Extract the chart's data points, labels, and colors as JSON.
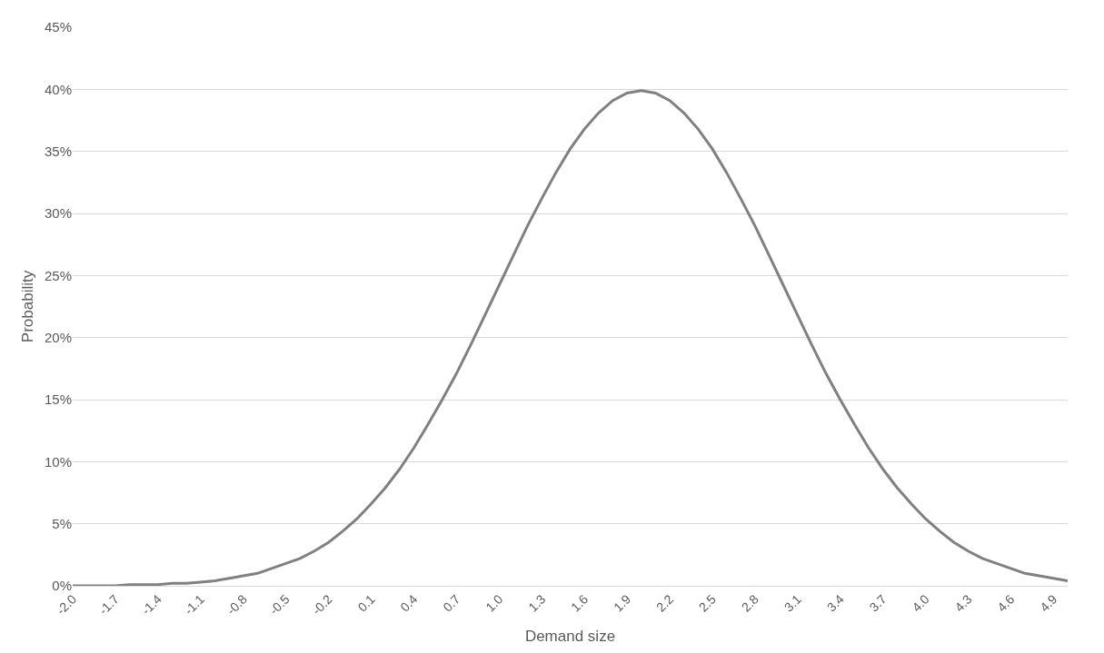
{
  "chart_data": {
    "type": "line",
    "xlabel": "Demand size",
    "ylabel": "Probability",
    "categories": [
      "-2.0",
      null,
      null,
      "-1.7",
      null,
      null,
      "-1.4",
      null,
      null,
      "-1.1",
      null,
      null,
      "-0.8",
      null,
      null,
      "-0.5",
      null,
      null,
      "-0.2",
      null,
      null,
      "0.1",
      null,
      null,
      "0.4",
      null,
      null,
      "0.7",
      null,
      null,
      "1.0",
      null,
      null,
      "1.3",
      null,
      null,
      "1.6",
      null,
      null,
      "1.9",
      null,
      null,
      "2.2",
      null,
      null,
      "2.5",
      null,
      null,
      "2.8",
      null,
      null,
      "3.1",
      null,
      null,
      "3.4",
      null,
      null,
      "3.7",
      null,
      null,
      "4.0",
      null,
      null,
      "4.3",
      null,
      null,
      "4.6",
      null,
      null,
      "4.9",
      null
    ],
    "series": [
      {
        "color": "#808080",
        "values": [
          0.0,
          0.0,
          0.0,
          0.0,
          0.1,
          0.1,
          0.1,
          0.2,
          0.2,
          0.3,
          0.4,
          0.6,
          0.8,
          1.0,
          1.4,
          1.8,
          2.2,
          2.8,
          3.5,
          4.4,
          5.4,
          6.6,
          7.9,
          9.4,
          11.1,
          13.0,
          15.0,
          17.1,
          19.4,
          21.8,
          24.2,
          26.6,
          29.0,
          31.2,
          33.3,
          35.2,
          36.8,
          38.1,
          39.1,
          39.7,
          39.9,
          39.7,
          39.1,
          38.1,
          36.8,
          35.2,
          33.3,
          31.2,
          29.0,
          26.6,
          24.2,
          21.8,
          19.4,
          17.1,
          15.0,
          13.0,
          11.1,
          9.4,
          7.9,
          6.6,
          5.4,
          4.4,
          3.5,
          2.8,
          2.2,
          1.8,
          1.4,
          1.0,
          0.8,
          0.6,
          0.4
        ]
      }
    ],
    "ylim": [
      0,
      45
    ],
    "yticks": [
      {
        "value": 0,
        "label": "0%"
      },
      {
        "value": 5,
        "label": "5%"
      },
      {
        "value": 10,
        "label": "10%"
      },
      {
        "value": 15,
        "label": "15%"
      },
      {
        "value": 20,
        "label": "20%"
      },
      {
        "value": 25,
        "label": "25%"
      },
      {
        "value": 30,
        "label": "30%"
      },
      {
        "value": 35,
        "label": "35%"
      },
      {
        "value": 40,
        "label": "40%"
      },
      {
        "value": 45,
        "label": "45%"
      }
    ],
    "grid": "y",
    "legend": false,
    "marker": "none",
    "line_style": "solid"
  }
}
